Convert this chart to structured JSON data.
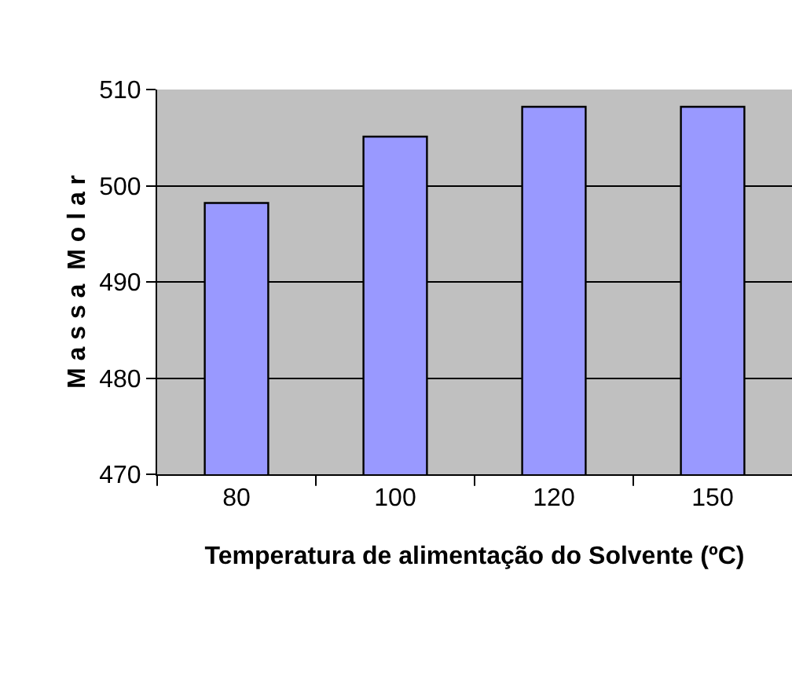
{
  "chart_data": {
    "type": "bar",
    "xlabel": "Temperatura de alimentação do Solvente (ºC)",
    "ylabel": "M a s s a  M o l a r",
    "categories": [
      "80",
      "100",
      "120",
      "150"
    ],
    "values": [
      498.2,
      505.1,
      508.2,
      508.2
    ],
    "color": "#9999ff",
    "ylim": [
      470,
      510
    ],
    "yticks": [
      470,
      480,
      490,
      500,
      510
    ],
    "grid": "y"
  }
}
